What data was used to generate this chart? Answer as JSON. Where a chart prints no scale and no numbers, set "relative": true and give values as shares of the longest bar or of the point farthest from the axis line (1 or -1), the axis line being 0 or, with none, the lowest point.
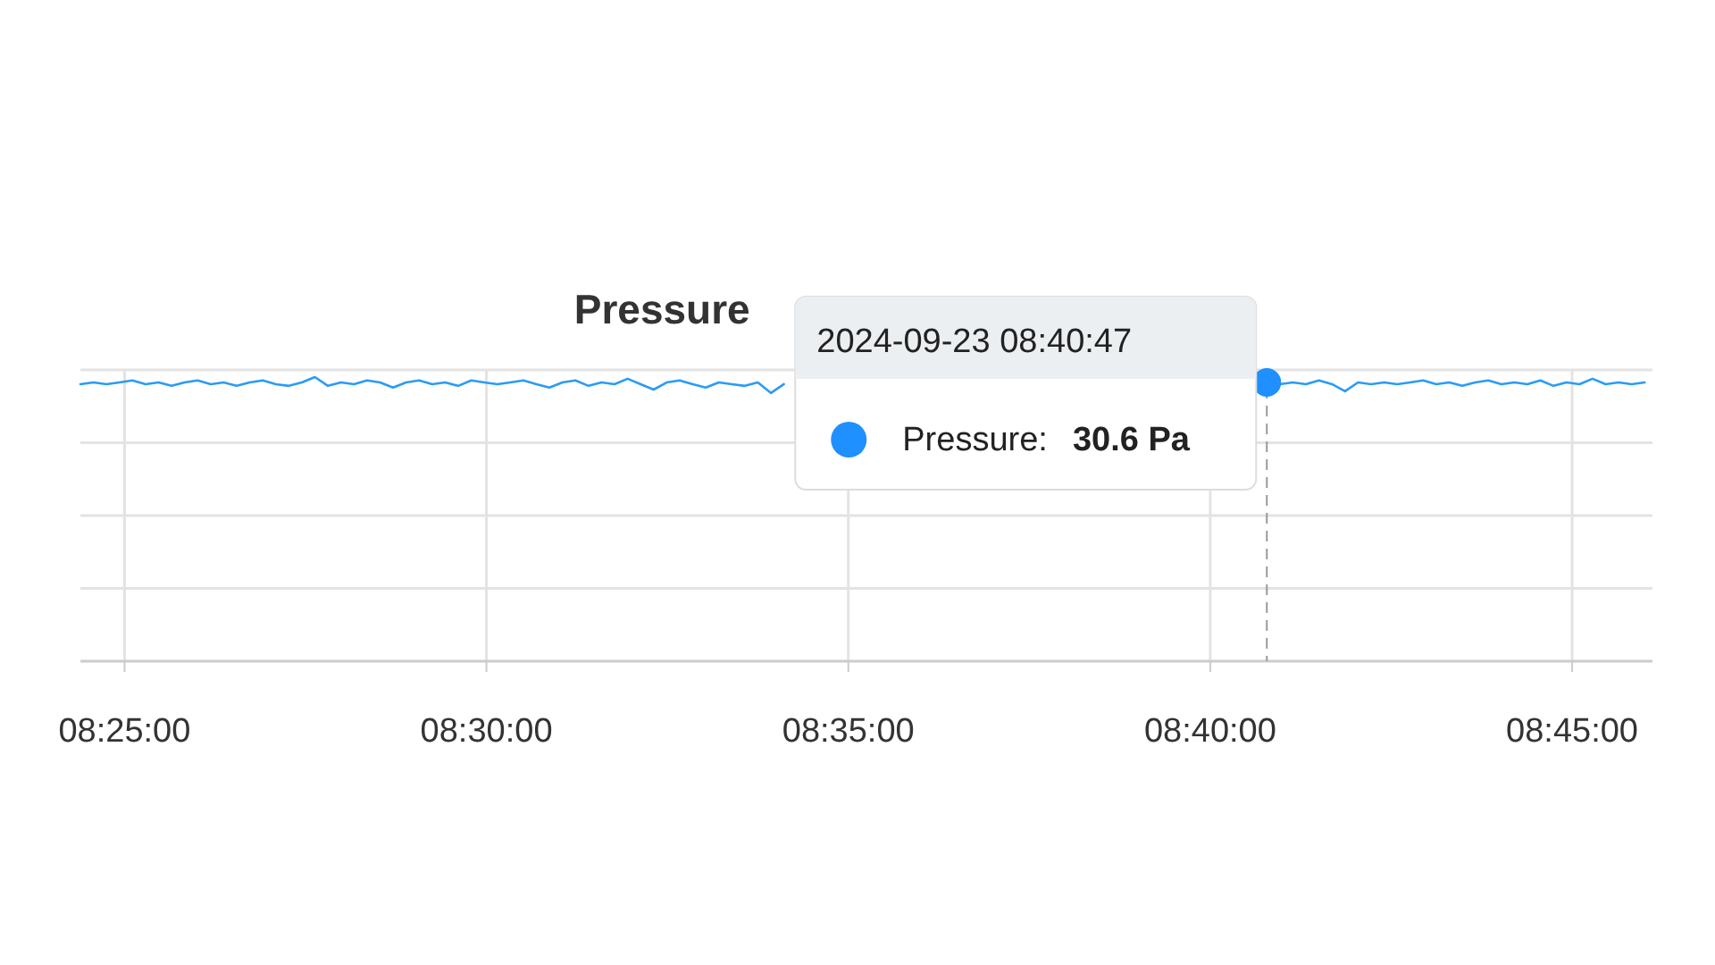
{
  "chart_data": {
    "type": "line",
    "title": "Pressure",
    "relative": true,
    "grid": true,
    "marker": "none",
    "line_style": "solid",
    "xlim": [
      8.4065,
      8.7685
    ],
    "xticks": [
      {
        "value": 8.41667,
        "label": "08:25:00"
      },
      {
        "value": 8.5,
        "label": "08:30:00"
      },
      {
        "value": 8.58333,
        "label": "08:35:00"
      },
      {
        "value": 8.66667,
        "label": "08:40:00"
      },
      {
        "value": 8.75,
        "label": "08:45:00"
      }
    ],
    "annotations": [
      "2024-09-23 08:40:47",
      "Pressure: 30.6 Pa"
    ],
    "ref_lines": [
      {
        "axis": "x",
        "value": 8.6797,
        "color": "#999999",
        "line_style": "dashed"
      }
    ],
    "series": [
      {
        "color": "#2b9bf4",
        "x": [
          8.4065,
          8.4095,
          8.4125,
          8.4155,
          8.4185,
          8.4215,
          8.4245,
          8.4275,
          8.4305,
          8.4335,
          8.4365,
          8.4395,
          8.4425,
          8.4455,
          8.4485,
          8.4515,
          8.4545,
          8.4575,
          8.4605,
          8.4635,
          8.4665,
          8.4695,
          8.4725,
          8.4755,
          8.4785,
          8.4815,
          8.4845,
          8.4875,
          8.4905,
          8.4935,
          8.4965,
          8.4995,
          8.5025,
          8.5055,
          8.5085,
          8.5115,
          8.5145,
          8.5175,
          8.5205,
          8.5235,
          8.5265,
          8.5295,
          8.5325,
          8.5355,
          8.5385,
          8.5415,
          8.5445,
          8.5475,
          8.5505,
          8.5535,
          8.5565,
          8.5595,
          8.5625,
          8.5655,
          8.5685,
          8.62,
          8.6797,
          8.6827,
          8.6857,
          8.6887,
          8.6917,
          8.6947,
          8.6977,
          8.7007,
          8.7037,
          8.7067,
          8.7097,
          8.7127,
          8.7157,
          8.7187,
          8.7217,
          8.7247,
          8.7277,
          8.7307,
          8.7337,
          8.7367,
          8.7397,
          8.7427,
          8.7457,
          8.7487,
          8.7517,
          8.7547,
          8.7577,
          8.7607,
          8.7637,
          8.7667
        ],
        "values": [
          0.975,
          0.981,
          0.975,
          0.981,
          0.988,
          0.975,
          0.981,
          0.969,
          0.981,
          0.988,
          0.975,
          0.981,
          0.969,
          0.981,
          0.988,
          0.975,
          0.969,
          0.981,
          1,
          0.969,
          0.981,
          0.975,
          0.988,
          0.981,
          0.963,
          0.981,
          0.988,
          0.975,
          0.981,
          0.969,
          0.988,
          0.981,
          0.975,
          0.981,
          0.988,
          0.975,
          0.963,
          0.981,
          0.988,
          0.969,
          0.981,
          0.975,
          0.994,
          0.975,
          0.956,
          0.981,
          0.988,
          0.975,
          0.963,
          0.981,
          0.975,
          0.969,
          0.981,
          0.944,
          0.975,
          null,
          0.981,
          0.975,
          0.981,
          0.975,
          0.988,
          0.975,
          0.95,
          0.981,
          0.975,
          0.981,
          0.975,
          0.981,
          0.988,
          0.975,
          0.981,
          0.969,
          0.981,
          0.988,
          0.975,
          0.981,
          0.975,
          0.988,
          0.969,
          0.981,
          0.975,
          0.994,
          0.975,
          0.981,
          0.975,
          0.981
        ]
      }
    ]
  }
}
